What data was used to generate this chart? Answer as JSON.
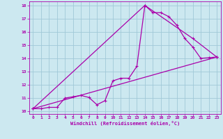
{
  "background_color": "#cce8f0",
  "grid_color": "#a0c8d8",
  "line_color": "#aa00aa",
  "xlabel": "Windchill (Refroidissement éolien,°C)",
  "xlim": [
    -0.5,
    23.5
  ],
  "ylim": [
    9.8,
    18.3
  ],
  "xticks": [
    0,
    1,
    2,
    3,
    4,
    5,
    6,
    7,
    8,
    9,
    10,
    11,
    12,
    13,
    14,
    15,
    16,
    17,
    18,
    19,
    20,
    21,
    22,
    23
  ],
  "yticks": [
    10,
    11,
    12,
    13,
    14,
    15,
    16,
    17,
    18
  ],
  "series1": [
    [
      0,
      10.2
    ],
    [
      1,
      10.2
    ],
    [
      2,
      10.3
    ],
    [
      3,
      10.3
    ],
    [
      4,
      11.0
    ],
    [
      5,
      11.1
    ],
    [
      6,
      11.2
    ],
    [
      7,
      11.05
    ],
    [
      8,
      10.5
    ],
    [
      9,
      10.8
    ],
    [
      10,
      12.3
    ],
    [
      11,
      12.5
    ],
    [
      12,
      12.5
    ],
    [
      13,
      13.4
    ],
    [
      14,
      18.0
    ],
    [
      15,
      17.45
    ],
    [
      16,
      17.45
    ],
    [
      17,
      17.15
    ],
    [
      18,
      16.5
    ],
    [
      19,
      15.5
    ],
    [
      20,
      14.85
    ],
    [
      21,
      14.0
    ],
    [
      22,
      14.05
    ],
    [
      23,
      14.1
    ]
  ],
  "series2": [
    [
      0,
      10.2
    ],
    [
      14,
      18.0
    ],
    [
      20,
      15.5
    ],
    [
      23,
      14.1
    ]
  ],
  "series3": [
    [
      0,
      10.2
    ],
    [
      23,
      14.1
    ]
  ]
}
